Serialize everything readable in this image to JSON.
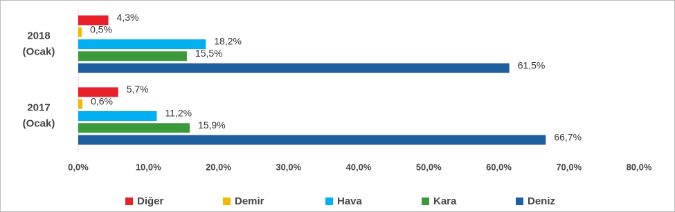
{
  "chart_data": {
    "type": "bar",
    "orientation": "horizontal",
    "categories": [
      "2018 (Ocak)",
      "2017 (Ocak)"
    ],
    "series": [
      {
        "name": "Diğer",
        "color": "#e8202a",
        "values": [
          4.3,
          5.7
        ],
        "value_labels": [
          "4,3%",
          "5,7%"
        ]
      },
      {
        "name": "Demir",
        "color": "#f5b800",
        "values": [
          0.5,
          0.6
        ],
        "value_labels": [
          "0,5%",
          "0,6%"
        ]
      },
      {
        "name": "Hava",
        "color": "#00b0f0",
        "values": [
          18.2,
          11.2
        ],
        "value_labels": [
          "18,2%",
          "11,2%"
        ]
      },
      {
        "name": "Kara",
        "color": "#3a9a3a",
        "values": [
          15.5,
          15.9
        ],
        "value_labels": [
          "15,5%",
          "15,9%"
        ]
      },
      {
        "name": "Deniz",
        "color": "#1f5fa0",
        "values": [
          61.5,
          66.7
        ],
        "value_labels": [
          "61,5%",
          "66,7%"
        ]
      }
    ],
    "xlim": [
      0,
      80
    ],
    "xticks": [
      {
        "value": 0,
        "label": "0,0%"
      },
      {
        "value": 10,
        "label": "10,0%"
      },
      {
        "value": 20,
        "label": "20,0%"
      },
      {
        "value": 30,
        "label": "30,0%"
      },
      {
        "value": 40,
        "label": "40,0%"
      },
      {
        "value": 50,
        "label": "50,0%"
      },
      {
        "value": 60,
        "label": "60,0%"
      },
      {
        "value": 70,
        "label": "70,0%"
      },
      {
        "value": 80,
        "label": "80,0%"
      }
    ],
    "legend": "bottom",
    "grid": false
  }
}
